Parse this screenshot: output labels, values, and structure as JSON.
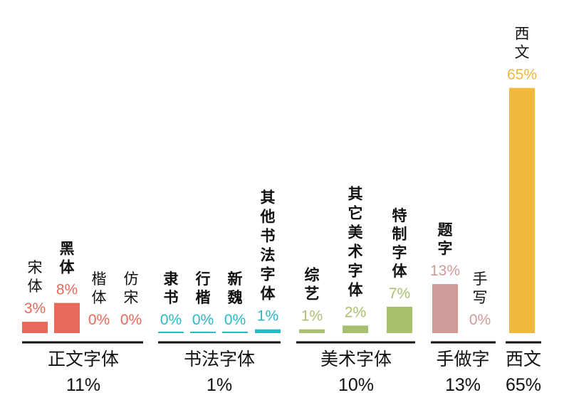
{
  "chart_data": {
    "type": "bar",
    "baseline_series_note": "",
    "groups": [
      {
        "name": "正文字体",
        "total": "11%",
        "color": "#e8685a",
        "bars": [
          {
            "label": "宋体",
            "value": 3,
            "value_label": "3%",
            "style": "normal"
          },
          {
            "label": "黑体",
            "value": 8,
            "value_label": "8%",
            "style": "bold"
          },
          {
            "label": "楷体",
            "value": 0,
            "value_label": "0%",
            "style": "normal"
          },
          {
            "label": "仿宋",
            "value": 0,
            "value_label": "0%",
            "style": "normal"
          }
        ]
      },
      {
        "name": "书法字体",
        "total": "1%",
        "color": "#27b8cc",
        "bars": [
          {
            "label": "隶书",
            "value": 0,
            "value_label": "0%",
            "style": "bold"
          },
          {
            "label": "行楷",
            "value": 0,
            "value_label": "0%",
            "style": "bold"
          },
          {
            "label": "新魏",
            "value": 0,
            "value_label": "0%",
            "style": "bold"
          },
          {
            "label": "其他书法字体",
            "value": 1,
            "value_label": "1%",
            "style": "bold"
          }
        ]
      },
      {
        "name": "美术字体",
        "total": "10%",
        "color": "#a8bf6e",
        "bars": [
          {
            "label": "综艺",
            "value": 1,
            "value_label": "1%",
            "style": "bold"
          },
          {
            "label": "其它美术字体",
            "value": 2,
            "value_label": "2%",
            "style": "bold"
          },
          {
            "label": "特制字体",
            "value": 7,
            "value_label": "7%",
            "style": "bold"
          }
        ]
      },
      {
        "name": "手做字",
        "total": "13%",
        "color": "#d09a98",
        "bars": [
          {
            "label": "题字",
            "value": 13,
            "value_label": "13%",
            "style": "bold"
          },
          {
            "label": "手写",
            "value": 0,
            "value_label": "0%",
            "style": "normal"
          }
        ]
      },
      {
        "name": "西文",
        "total": "65%",
        "color": "#f0b83c",
        "bars": [
          {
            "label": "西文",
            "value": 65,
            "value_label": "65%",
            "style": "normal"
          }
        ]
      }
    ]
  }
}
